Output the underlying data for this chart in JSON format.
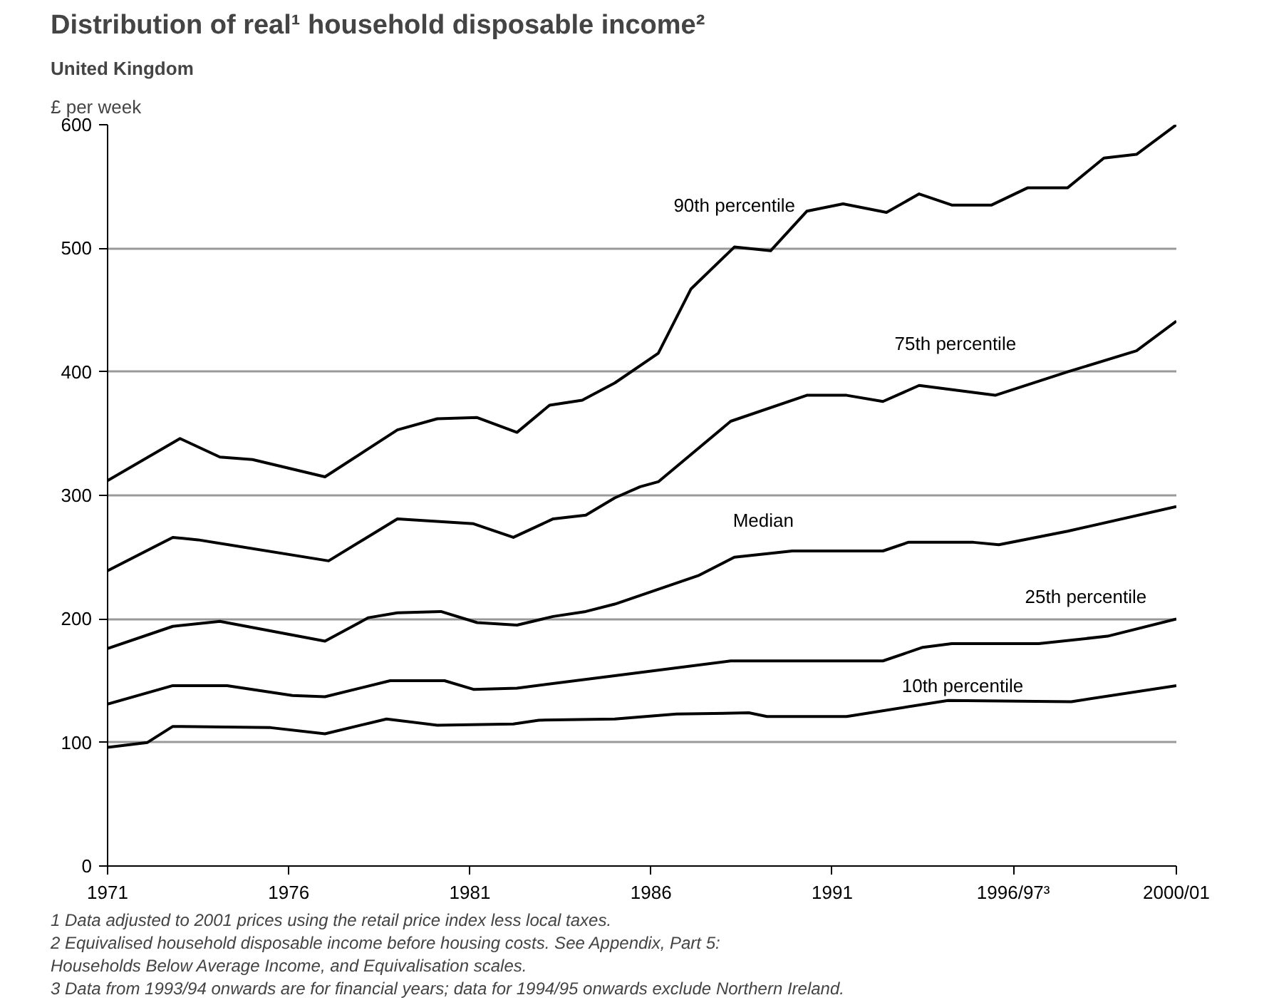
{
  "chart_data": {
    "type": "line",
    "title": "Distribution of real¹ household disposable income²",
    "subtitle": "United Kingdom",
    "ylabel": "£ per week",
    "xlim": [
      1971,
      2000.5
    ],
    "xticks": [
      1971,
      1976,
      1981,
      1986,
      1991,
      {
        "value": 1996,
        "label": "1996/97³"
      },
      {
        "value": 2000.5,
        "label": "2000/01"
      }
    ],
    "ylim": [
      0,
      600
    ],
    "yticks": [
      0,
      100,
      200,
      300,
      400,
      500,
      600
    ],
    "grid": "y",
    "marker": "none",
    "line_style": "solid",
    "series": [
      {
        "name": "90th percentile",
        "color": "#000000",
        "x": [
          1971,
          1973,
          1974.1,
          1975,
          1977,
          1979,
          1980.1,
          1981.2,
          1982.3,
          1983.2,
          1984.1,
          1985,
          1986.2,
          1987.1,
          1988.3,
          1989.3,
          1990.3,
          1991.3,
          1992.5,
          1993.4,
          1994.3,
          1995.4,
          1996.4,
          1997.5,
          1998.5,
          1999.4,
          2000.5
        ],
        "values": [
          312,
          346,
          331,
          329,
          315,
          353,
          362,
          363,
          351,
          373,
          377,
          391,
          415,
          467,
          501,
          498,
          530,
          536,
          529,
          544,
          535,
          535,
          549,
          549,
          573,
          576,
          600
        ]
      },
      {
        "name": "75th percentile",
        "color": "#000000",
        "x": [
          1971,
          1972.8,
          1973.5,
          1977.1,
          1979,
          1981.1,
          1982.2,
          1983.3,
          1984.2,
          1985,
          1985.7,
          1986.2,
          1988.2,
          1990.3,
          1991.4,
          1992.4,
          1993.4,
          1995.5,
          1997.5,
          1999.4,
          2000.5
        ],
        "values": [
          239,
          266,
          264,
          247,
          281,
          277,
          266,
          281,
          284,
          298,
          307,
          311,
          360,
          381,
          381,
          376,
          389,
          381,
          400,
          417,
          441
        ]
      },
      {
        "name": "Median",
        "color": "#000000",
        "x": [
          1971,
          1972.8,
          1974.1,
          1977,
          1978.2,
          1979,
          1980.2,
          1981.2,
          1982.3,
          1983.3,
          1984.2,
          1985,
          1987.3,
          1988.3,
          1989.9,
          1992.4,
          1993.1,
          1994.9,
          1995.6,
          1997.5,
          2000.5
        ],
        "values": [
          176,
          194,
          198,
          182,
          201,
          205,
          206,
          197,
          195,
          202,
          206,
          212,
          235,
          250,
          255,
          255,
          262,
          262,
          260,
          271,
          291
        ]
      },
      {
        "name": "25th percentile",
        "color": "#000000",
        "x": [
          1971,
          1972.8,
          1974.3,
          1976.1,
          1977,
          1978.8,
          1980.3,
          1981.1,
          1982.3,
          1985,
          1988.2,
          1992.4,
          1993.5,
          1994.3,
          1996.7,
          1998.6,
          2000.5
        ],
        "values": [
          131,
          146,
          146,
          138,
          137,
          150,
          150,
          143,
          144,
          154,
          166,
          166,
          177,
          180,
          180,
          186,
          200
        ]
      },
      {
        "name": "10th percentile",
        "color": "#000000",
        "x": [
          1971,
          1972.1,
          1972.8,
          1975.5,
          1977,
          1978.7,
          1980.1,
          1982.2,
          1982.9,
          1985,
          1986.7,
          1988.7,
          1989.2,
          1991.4,
          1994.2,
          1997.6,
          2000.5
        ],
        "values": [
          96,
          100,
          113,
          112,
          107,
          119,
          114,
          115,
          118,
          119,
          123,
          124,
          121,
          121,
          134,
          133,
          146
        ]
      }
    ],
    "annotations": [
      "1 Data adjusted to 2001 prices using the retail price index less local taxes.",
      "2 Equivalised household disposable income before housing costs. See Appendix, Part 5:",
      "   Households Below Average Income, and Equivalisation scales.",
      "3 Data from 1993/94 onwards are for financial years; data for 1994/95 onwards exclude Northern Ireland."
    ]
  }
}
